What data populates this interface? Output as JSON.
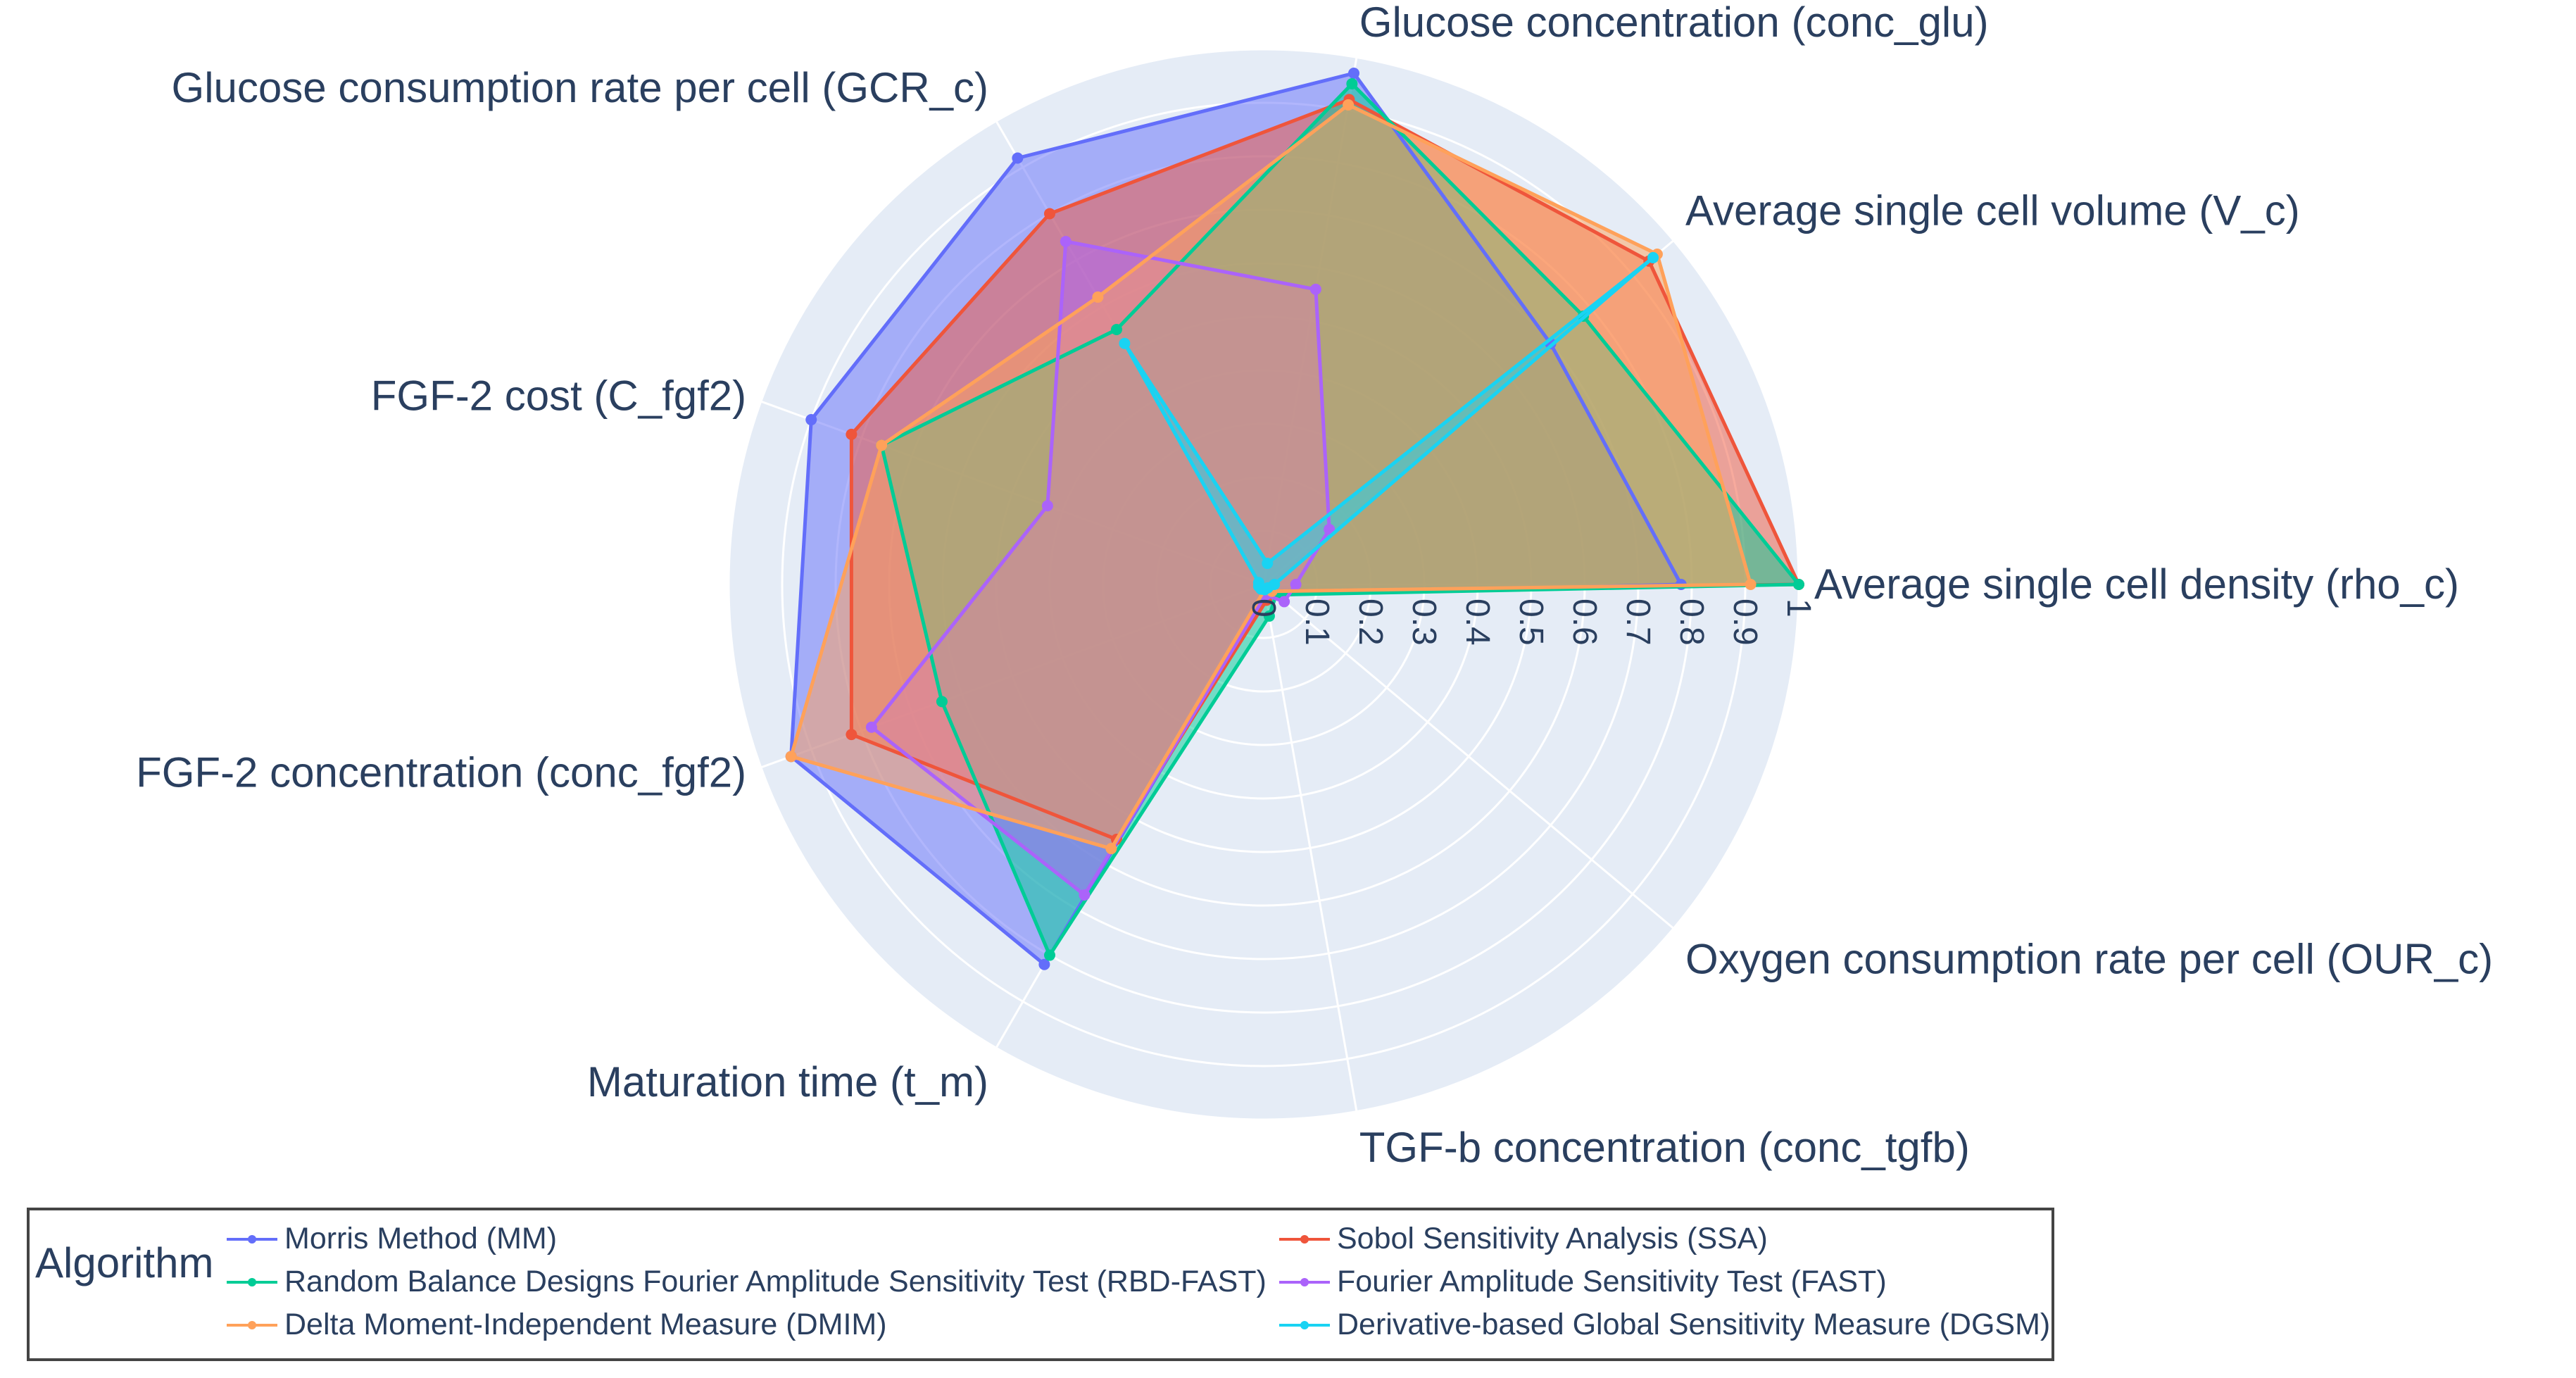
{
  "chart_data": {
    "type": "radar",
    "title": "",
    "legend_title": "Algorithm",
    "radial_range": [
      0,
      1
    ],
    "radial_ticks": [
      "0",
      "0.1",
      "0.2",
      "0.3",
      "0.4",
      "0.5",
      "0.6",
      "0.7",
      "0.8",
      "0.9",
      "1"
    ],
    "categories": [
      "Average single cell density (rho_c)",
      "Average single cell volume (V_c)",
      "Glucose concentration (conc_glu)",
      "Glucose consumption rate per cell (GCR_c)",
      "FGF-2 cost (C_fgf2)",
      "FGF-2 concentration (conc_fgf2)",
      "Maturation time (t_m)",
      "TGF-b concentration (conc_tgfb)",
      "Oxygen consumption rate per cell (OUR_c)"
    ],
    "series": [
      {
        "name": "Morris Method (MM)",
        "color": "#636efa",
        "values": [
          0.78,
          0.7,
          0.97,
          0.92,
          0.9,
          0.94,
          0.82,
          0.02,
          0.03
        ]
      },
      {
        "name": "Sobol Sensitivity Analysis (SSA)",
        "color": "#ef553b",
        "values": [
          1.0,
          0.94,
          0.92,
          0.8,
          0.82,
          0.82,
          0.55,
          0.03,
          0.02
        ]
      },
      {
        "name": "Random Balance Designs Fourier Amplitude Sensitivity Test (RBD-FAST)",
        "color": "#00cc96",
        "values": [
          1.0,
          0.78,
          0.95,
          0.55,
          0.76,
          0.64,
          0.8,
          0.06,
          0.03
        ]
      },
      {
        "name": "Fourier Amplitude Sensitivity Test (FAST)",
        "color": "#ab63fa",
        "values": [
          0.06,
          0.16,
          0.56,
          0.74,
          0.43,
          0.78,
          0.67,
          0.02,
          0.05
        ]
      },
      {
        "name": "Delta Moment-Independent Measure (DMIM)",
        "color": "#ffa15a",
        "values": [
          0.91,
          0.96,
          0.91,
          0.62,
          0.76,
          0.94,
          0.57,
          0.01,
          0.02
        ]
      },
      {
        "name": "Derivative-based Global Sensitivity Measure (DGSM)",
        "color": "#19d3f3",
        "values": [
          0.02,
          0.95,
          0.04,
          0.52,
          0.01,
          0.01,
          0.01,
          0.01,
          0.01
        ]
      }
    ]
  }
}
